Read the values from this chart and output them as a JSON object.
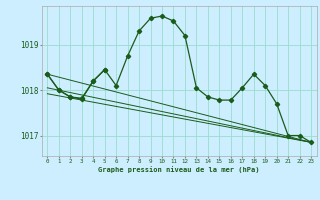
{
  "title": "Graphe pression niveau de la mer (hPa)",
  "background_color": "#cceeff",
  "grid_color": "#99ddcc",
  "line_color": "#1a5c1a",
  "xlim": [
    -0.5,
    23.5
  ],
  "ylim": [
    1016.55,
    1019.85
  ],
  "yticks": [
    1017,
    1018,
    1019
  ],
  "xticks": [
    0,
    1,
    2,
    3,
    4,
    5,
    6,
    7,
    8,
    9,
    10,
    11,
    12,
    13,
    14,
    15,
    16,
    17,
    18,
    19,
    20,
    21,
    22,
    23
  ],
  "series1_x": [
    0,
    1,
    2,
    3,
    4,
    5,
    6,
    7,
    8,
    9,
    10,
    11,
    12,
    13,
    14,
    15,
    16,
    17,
    18,
    19,
    20,
    21,
    22,
    23
  ],
  "series1_y": [
    1018.35,
    1018.0,
    1017.85,
    1017.8,
    1018.2,
    1018.45,
    1018.1,
    1018.75,
    1019.3,
    1019.58,
    1019.63,
    1019.52,
    1019.2,
    1018.05,
    1017.85,
    1017.78,
    1017.78,
    1018.05,
    1018.35,
    1018.1,
    1017.7,
    1017.0,
    1017.0,
    1016.85
  ],
  "series2_x": [
    0,
    1,
    2,
    3,
    4,
    5
  ],
  "series2_y": [
    1018.35,
    1018.0,
    1017.85,
    1017.82,
    1018.2,
    1018.45
  ],
  "trend1_x": [
    0,
    23
  ],
  "trend1_y": [
    1017.92,
    1016.85
  ],
  "trend2_x": [
    0,
    23
  ],
  "trend2_y": [
    1018.05,
    1016.85
  ],
  "trend3_x": [
    0,
    23
  ],
  "trend3_y": [
    1018.35,
    1016.85
  ]
}
